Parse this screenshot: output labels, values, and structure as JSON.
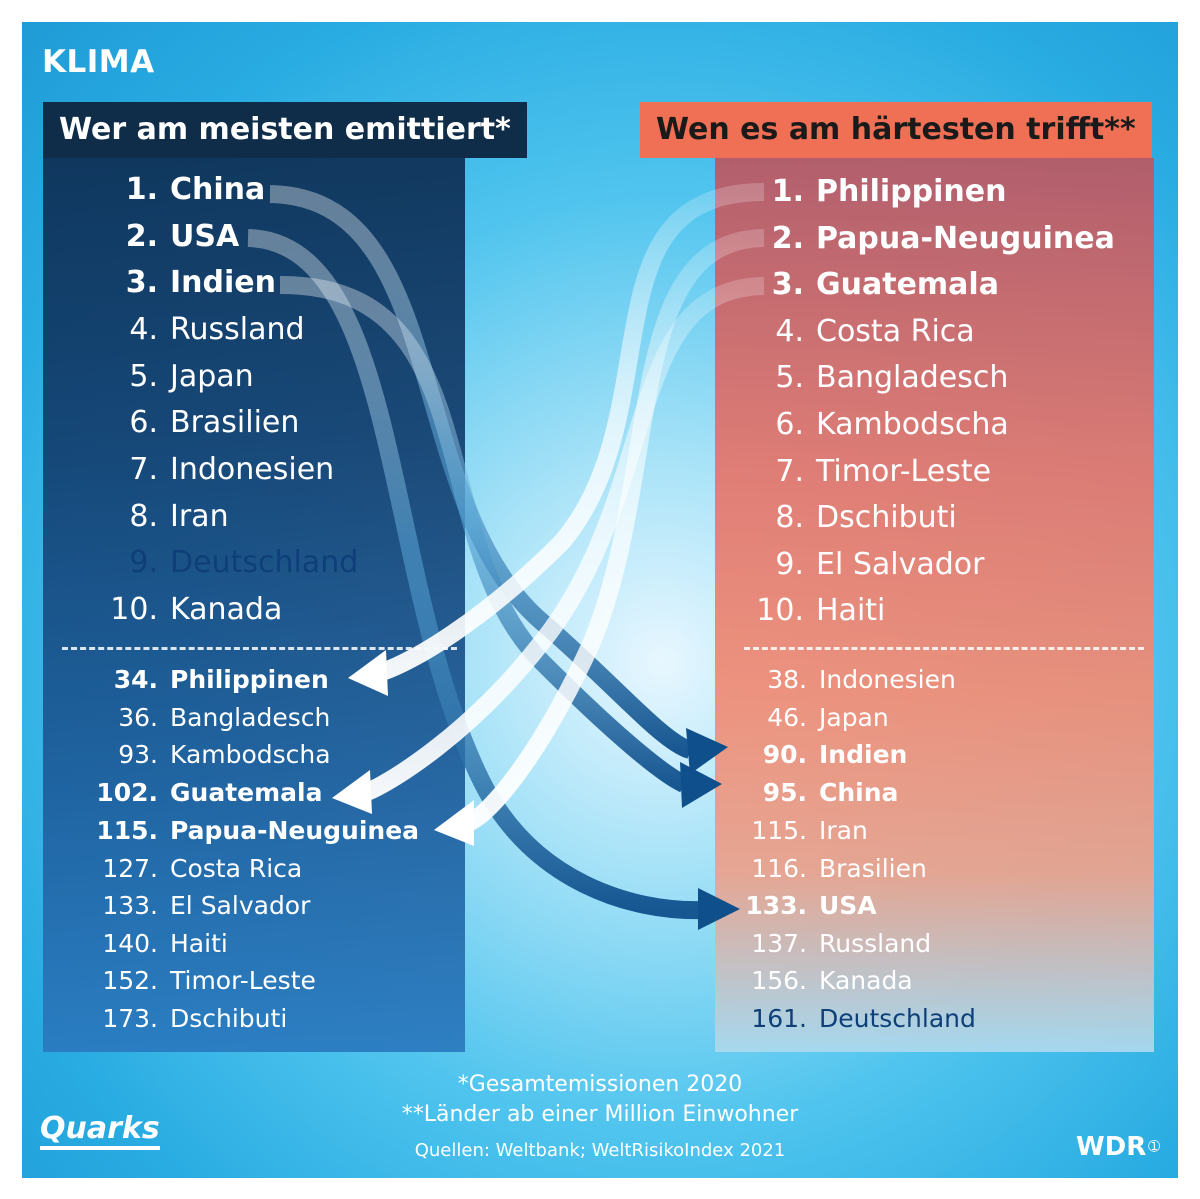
{
  "title": "KLIMA",
  "left": {
    "header": "Wer am meisten emittiert*",
    "top": [
      {
        "rank": "1.",
        "name": "China",
        "bold": true,
        "dark": false
      },
      {
        "rank": "2.",
        "name": "USA",
        "bold": true,
        "dark": false
      },
      {
        "rank": "3.",
        "name": "Indien",
        "bold": true,
        "dark": false
      },
      {
        "rank": "4.",
        "name": "Russland",
        "bold": false,
        "dark": false
      },
      {
        "rank": "5.",
        "name": "Japan",
        "bold": false,
        "dark": false
      },
      {
        "rank": "6.",
        "name": "Brasilien",
        "bold": false,
        "dark": false
      },
      {
        "rank": "7.",
        "name": "Indonesien",
        "bold": false,
        "dark": false
      },
      {
        "rank": "8.",
        "name": "Iran",
        "bold": false,
        "dark": false
      },
      {
        "rank": "9.",
        "name": "Deutschland",
        "bold": false,
        "dark": true
      },
      {
        "rank": "10.",
        "name": "Kanada",
        "bold": false,
        "dark": false
      }
    ],
    "bottom": [
      {
        "rank": "34.",
        "name": "Philippinen",
        "bold": true
      },
      {
        "rank": "36.",
        "name": "Bangladesch",
        "bold": false
      },
      {
        "rank": "93.",
        "name": "Kambodscha",
        "bold": false
      },
      {
        "rank": "102.",
        "name": "Guatemala",
        "bold": true
      },
      {
        "rank": "115.",
        "name": "Papua-Neuguinea",
        "bold": true
      },
      {
        "rank": "127.",
        "name": "Costa Rica",
        "bold": false
      },
      {
        "rank": "133.",
        "name": "El Salvador",
        "bold": false
      },
      {
        "rank": "140.",
        "name": "Haiti",
        "bold": false
      },
      {
        "rank": "152.",
        "name": "Timor-Leste",
        "bold": false
      },
      {
        "rank": "173.",
        "name": "Dschibuti",
        "bold": false
      }
    ]
  },
  "right": {
    "header": "Wen es am härtesten trifft**",
    "top": [
      {
        "rank": "1.",
        "name": "Philippinen",
        "bold": true,
        "dark": false
      },
      {
        "rank": "2.",
        "name": "Papua-Neuguinea",
        "bold": true,
        "dark": false
      },
      {
        "rank": "3.",
        "name": "Guatemala",
        "bold": true,
        "dark": false
      },
      {
        "rank": "4.",
        "name": "Costa Rica",
        "bold": false,
        "dark": false
      },
      {
        "rank": "5.",
        "name": "Bangladesch",
        "bold": false,
        "dark": false
      },
      {
        "rank": "6.",
        "name": "Kambodscha",
        "bold": false,
        "dark": false
      },
      {
        "rank": "7.",
        "name": "Timor-Leste",
        "bold": false,
        "dark": false
      },
      {
        "rank": "8.",
        "name": "Dschibuti",
        "bold": false,
        "dark": false
      },
      {
        "rank": "9.",
        "name": "El Salvador",
        "bold": false,
        "dark": false
      },
      {
        "rank": "10.",
        "name": "Haiti",
        "bold": false,
        "dark": false
      }
    ],
    "bottom": [
      {
        "rank": "38.",
        "name": "Indonesien",
        "bold": false,
        "dark": false
      },
      {
        "rank": "46.",
        "name": "Japan",
        "bold": false,
        "dark": false
      },
      {
        "rank": "90.",
        "name": "Indien",
        "bold": true,
        "dark": false
      },
      {
        "rank": "95.",
        "name": "China",
        "bold": true,
        "dark": false
      },
      {
        "rank": "115.",
        "name": "Iran",
        "bold": false,
        "dark": false
      },
      {
        "rank": "116.",
        "name": "Brasilien",
        "bold": false,
        "dark": false
      },
      {
        "rank": "133.",
        "name": "USA",
        "bold": true,
        "dark": false
      },
      {
        "rank": "137.",
        "name": "Russland",
        "bold": false,
        "dark": false
      },
      {
        "rank": "156.",
        "name": "Kanada",
        "bold": false,
        "dark": false
      },
      {
        "rank": "161.",
        "name": "Deutschland",
        "bold": false,
        "dark": true
      }
    ]
  },
  "footnotes": {
    "line1": "*Gesamtemissionen 2020",
    "line2": "**Länder ab einer Million Einwohner",
    "sources": "Quellen: Weltbank; WeltRisikoIndex 2021"
  },
  "logos": {
    "left": "Quarks",
    "right": "WDR"
  },
  "colors": {
    "background_blue": "#29ace2",
    "left_panel": "#123d6d",
    "right_header": "#f07055",
    "dark_highlight": "#0e3f78"
  }
}
